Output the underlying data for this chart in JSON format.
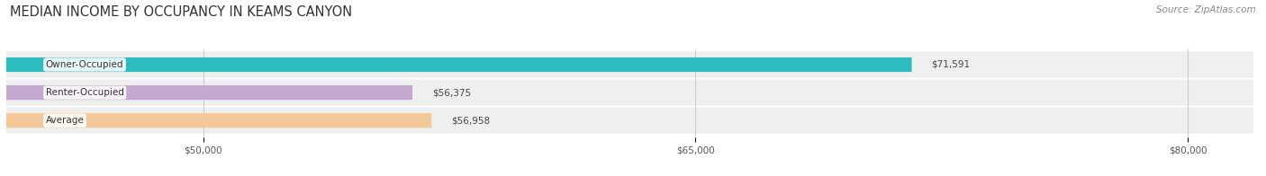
{
  "title": "MEDIAN INCOME BY OCCUPANCY IN KEAMS CANYON",
  "source": "Source: ZipAtlas.com",
  "categories": [
    "Owner-Occupied",
    "Renter-Occupied",
    "Average"
  ],
  "values": [
    71591,
    56375,
    56958
  ],
  "bar_colors": [
    "#2bbcbf",
    "#c4a8d0",
    "#f5c897"
  ],
  "row_bg_color": "#efefef",
  "xlim": [
    44000,
    82000
  ],
  "xticks": [
    50000,
    65000,
    80000
  ],
  "xtick_labels": [
    "$50,000",
    "$65,000",
    "$80,000"
  ],
  "title_fontsize": 10.5,
  "source_fontsize": 7.5,
  "label_fontsize": 7.5,
  "value_fontsize": 7.5
}
